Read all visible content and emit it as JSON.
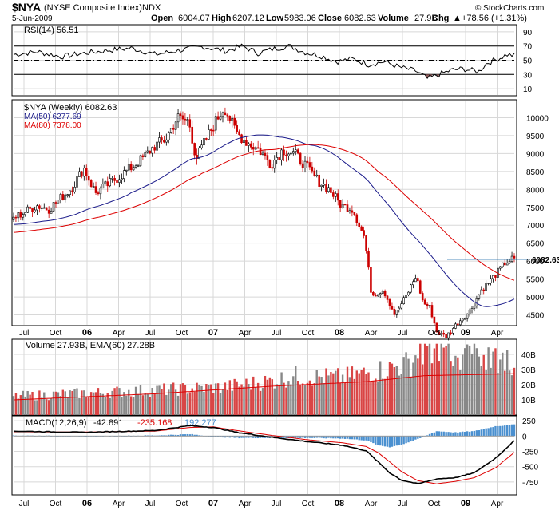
{
  "header": {
    "symbol": "$NYA",
    "description": "(NYSE Composite Index)",
    "exchange": "INDX",
    "brand": "© StockCharts.com",
    "date": "5-Jun-2009",
    "ohlc": [
      {
        "label": "Open",
        "value": "6004.07"
      },
      {
        "label": "High",
        "value": "6207.12"
      },
      {
        "label": "Low",
        "value": "5983.06"
      },
      {
        "label": "Close",
        "value": "6082.63"
      },
      {
        "label": "Volume",
        "value": "27.9B"
      },
      {
        "label": "Chg",
        "value": "+78.56 (+1.31%)"
      }
    ],
    "chg_arrow": "▲"
  },
  "colors": {
    "up": "#000000",
    "down": "#cc0000",
    "ma50": "#1a1a8a",
    "ma80": "#dd0000",
    "vol_up": "#888888",
    "vol_down": "#d94545",
    "hist": "#4a90d0",
    "rsi_fill": "#8c5a5a",
    "hline": "#1a6aaa"
  },
  "chart_data": [
    {
      "type": "line",
      "panel": "rsi",
      "legend": "RSI(14) 56.51",
      "ylim": [
        0,
        100
      ],
      "yticks": [
        90,
        70,
        50,
        30,
        10
      ],
      "levels": [
        70,
        50,
        30
      ],
      "anchors": [
        [
          0,
          58
        ],
        [
          6,
          62
        ],
        [
          12,
          55
        ],
        [
          18,
          60
        ],
        [
          24,
          64
        ],
        [
          30,
          67
        ],
        [
          36,
          58
        ],
        [
          42,
          64
        ],
        [
          48,
          69
        ],
        [
          54,
          63
        ],
        [
          58,
          70
        ],
        [
          62,
          60
        ],
        [
          66,
          66
        ],
        [
          70,
          70
        ],
        [
          74,
          61
        ],
        [
          78,
          56
        ],
        [
          82,
          48
        ],
        [
          86,
          52
        ],
        [
          90,
          44
        ],
        [
          94,
          48
        ],
        [
          98,
          40
        ],
        [
          102,
          35
        ],
        [
          105,
          24
        ],
        [
          108,
          30
        ],
        [
          111,
          36
        ],
        [
          114,
          38
        ],
        [
          118,
          34
        ],
        [
          120,
          46
        ],
        [
          123,
          52
        ],
        [
          125,
          58
        ],
        [
          127,
          56.51
        ]
      ],
      "oversold_fill": true
    },
    {
      "type": "candlestick",
      "panel": "price",
      "legend": {
        "title": "$NYA (Weekly) 6082.63",
        "ma50": "MA(50) 6277.69",
        "ma80": "MA(80) 7378.00"
      },
      "ylim": [
        4200,
        10500
      ],
      "yticks": [
        10000,
        9500,
        9000,
        8500,
        8000,
        7500,
        7000,
        6500,
        6000,
        5500,
        5000,
        4500
      ],
      "last_value": "6082.63",
      "price_line": 6050,
      "weeks": 128,
      "anchors": [
        [
          0,
          7200
        ],
        [
          10,
          7550
        ],
        [
          15,
          7450
        ],
        [
          25,
          8050
        ],
        [
          30,
          8600
        ],
        [
          35,
          7900
        ],
        [
          45,
          8350
        ],
        [
          55,
          8850
        ],
        [
          60,
          9200
        ],
        [
          65,
          9400
        ],
        [
          70,
          10000
        ],
        [
          75,
          9900
        ],
        [
          78,
          8850
        ],
        [
          85,
          9750
        ],
        [
          90,
          10300
        ],
        [
          95,
          9600
        ],
        [
          100,
          9300
        ],
        [
          105,
          9100
        ],
        [
          110,
          8700
        ],
        [
          115,
          9100
        ],
        [
          120,
          9000
        ],
        [
          125,
          8650
        ],
        [
          130,
          8250
        ],
        [
          135,
          8000
        ],
        [
          140,
          7550
        ],
        [
          145,
          7450
        ],
        [
          150,
          6650
        ],
        [
          153,
          5050
        ],
        [
          158,
          5200
        ],
        [
          163,
          4500
        ],
        [
          168,
          5050
        ],
        [
          172,
          5600
        ],
        [
          175,
          4850
        ],
        [
          178,
          4700
        ],
        [
          181,
          4000
        ],
        [
          185,
          3900
        ],
        [
          190,
          4300
        ],
        [
          195,
          4600
        ],
        [
          200,
          5200
        ],
        [
          205,
          5550
        ],
        [
          210,
          5950
        ],
        [
          214,
          6082.63
        ]
      ],
      "anchor_scale_weeks": 214,
      "ma50_start": 7020,
      "ma80_start": 6800,
      "x_ticks": [
        "Jul",
        "Oct",
        "06",
        "Apr",
        "Jul",
        "Oct",
        "07",
        "Apr",
        "Jul",
        "Oct",
        "08",
        "Apr",
        "Jul",
        "Oct",
        "09",
        "Apr"
      ]
    },
    {
      "type": "bar",
      "panel": "volume",
      "legend": "Volume 27.93B, EMA(60) 27.28B",
      "ylim": [
        0,
        50
      ],
      "yticks": [
        {
          "v": 40,
          "label": "40B"
        },
        {
          "v": 30,
          "label": "30B"
        },
        {
          "v": 20,
          "label": "20B"
        },
        {
          "v": 10,
          "label": "10B"
        }
      ],
      "anchors": [
        [
          0,
          12
        ],
        [
          30,
          14
        ],
        [
          60,
          16
        ],
        [
          90,
          18
        ],
        [
          110,
          22
        ],
        [
          120,
          25
        ],
        [
          140,
          24
        ],
        [
          160,
          30
        ],
        [
          175,
          36
        ],
        [
          190,
          33
        ],
        [
          214,
          30
        ]
      ],
      "ema_anchors": [
        [
          0,
          10
        ],
        [
          60,
          14
        ],
        [
          110,
          19
        ],
        [
          150,
          22
        ],
        [
          175,
          26
        ],
        [
          214,
          27.28
        ]
      ]
    },
    {
      "type": "line",
      "panel": "macd",
      "legend": {
        "name": "MACD(12,26,9)",
        "macd": "-42.891",
        "signal": "-235.168",
        "hist": "192.277"
      },
      "ylim": [
        -960,
        330
      ],
      "yticks": [
        {
          "v": 250,
          "label": "250"
        },
        {
          "v": 0,
          "label": "0"
        },
        {
          "v": -250,
          "label": "-250"
        },
        {
          "v": -500,
          "label": "-500"
        },
        {
          "v": -750,
          "label": "-750"
        }
      ],
      "macd_anchors": [
        [
          0,
          80
        ],
        [
          30,
          60
        ],
        [
          60,
          90
        ],
        [
          75,
          170
        ],
        [
          85,
          140
        ],
        [
          95,
          60
        ],
        [
          110,
          -20
        ],
        [
          125,
          -90
        ],
        [
          140,
          -150
        ],
        [
          150,
          -240
        ],
        [
          155,
          -420
        ],
        [
          160,
          -600
        ],
        [
          165,
          -720
        ],
        [
          172,
          -780
        ],
        [
          180,
          -700
        ],
        [
          188,
          -680
        ],
        [
          196,
          -600
        ],
        [
          205,
          -360
        ],
        [
          214,
          -42.891
        ]
      ],
      "signal_anchors": [
        [
          0,
          70
        ],
        [
          30,
          65
        ],
        [
          60,
          80
        ],
        [
          75,
          140
        ],
        [
          85,
          150
        ],
        [
          95,
          90
        ],
        [
          110,
          10
        ],
        [
          125,
          -60
        ],
        [
          140,
          -110
        ],
        [
          150,
          -170
        ],
        [
          155,
          -270
        ],
        [
          160,
          -420
        ],
        [
          165,
          -580
        ],
        [
          172,
          -730
        ],
        [
          180,
          -780
        ],
        [
          188,
          -740
        ],
        [
          196,
          -680
        ],
        [
          205,
          -520
        ],
        [
          214,
          -235.168
        ]
      ]
    }
  ]
}
